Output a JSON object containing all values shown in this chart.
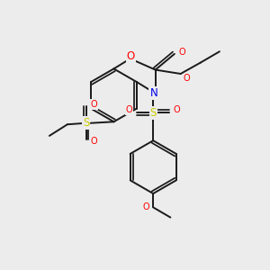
{
  "bg_color": "#ececec",
  "bond_color": "#1a1a1a",
  "atom_colors": {
    "O": "#ff0000",
    "N": "#0000ee",
    "S": "#cccc00",
    "C": "#1a1a1a"
  },
  "bond_width": 1.4,
  "font_size_atom": 8.5,
  "font_size_small": 7.0
}
